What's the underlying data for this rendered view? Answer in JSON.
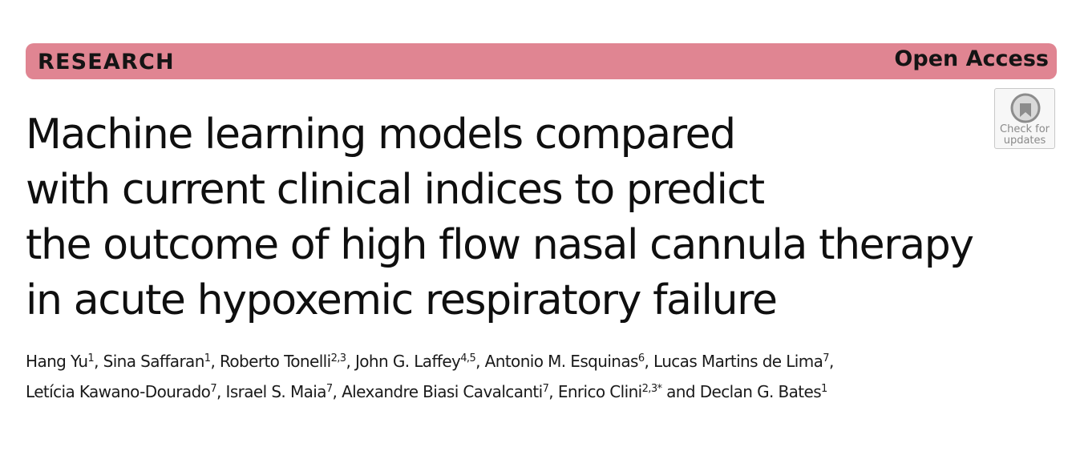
{
  "banner": {
    "section": "RESEARCH",
    "access": "Open Access",
    "color": "#e08592"
  },
  "badge": {
    "icon": "check-for-updates-icon",
    "line1": "Check for",
    "line2": "updates"
  },
  "title": {
    "lines": [
      "Machine learning models compared",
      "with current clinical indices to predict",
      "the outcome of high flow nasal cannula therapy",
      "in acute hypoxemic respiratory failure"
    ]
  },
  "authors": [
    {
      "name": "Hang Yu",
      "aff": "1",
      "sep": ", "
    },
    {
      "name": "Sina Saffaran",
      "aff": "1",
      "sep": ", "
    },
    {
      "name": "Roberto Tonelli",
      "aff": "2,3",
      "sep": ", "
    },
    {
      "name": "John G. Laffey",
      "aff": "4,5",
      "sep": ", "
    },
    {
      "name": "Antonio M. Esquinas",
      "aff": "6",
      "sep": ", "
    },
    {
      "name": "Lucas Martins de Lima",
      "aff": "7",
      "sep": ","
    },
    {
      "name": "Letícia Kawano-Dourado",
      "aff": "7",
      "sep": ", "
    },
    {
      "name": "Israel S. Maia",
      "aff": "7",
      "sep": ", "
    },
    {
      "name": "Alexandre Biasi Cavalcanti",
      "aff": "7",
      "sep": ", "
    },
    {
      "name": "Enrico Clini",
      "aff": "2,3*",
      "sep": " and "
    },
    {
      "name": "Declan G. Bates",
      "aff": "1",
      "sep": ""
    }
  ]
}
